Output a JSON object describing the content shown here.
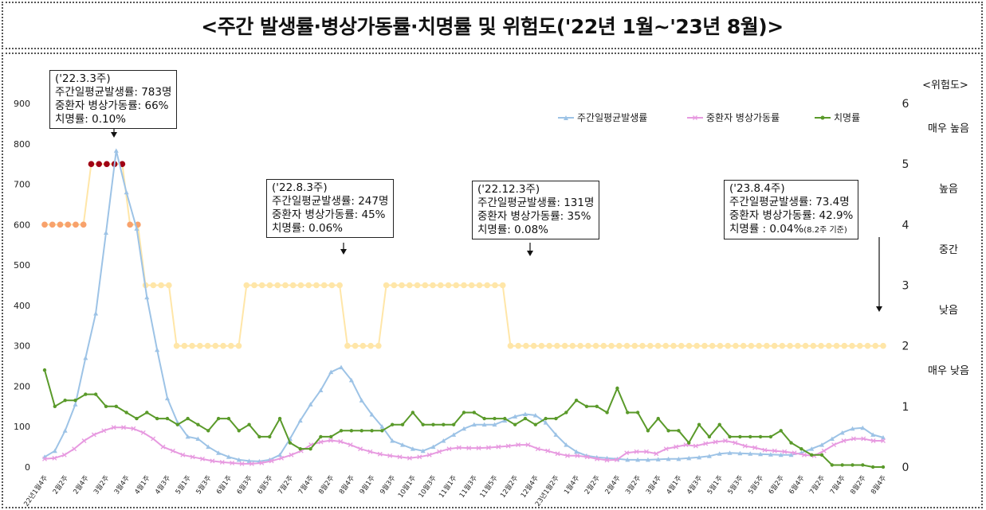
{
  "title": "<주간 발생률·병상가동률·치명률 및 위험도('22년 1월~'23년 8월)>",
  "chart_data": {
    "type": "line",
    "y_left": {
      "ylim": [
        0,
        900
      ],
      "ticks": [
        "0",
        "100",
        "200",
        "300",
        "400",
        "500",
        "600",
        "700",
        "800",
        "900"
      ]
    },
    "y_right": {
      "label": "<위험도>",
      "ylim": [
        0,
        6
      ],
      "ticks": [
        "0",
        "1",
        "2",
        "3",
        "4",
        "5",
        "6"
      ]
    },
    "risk_levels": [
      "매우 높음",
      "높음",
      "중간",
      "낮음",
      "매우 낮음"
    ],
    "legend": [
      "주간일평균발생률",
      "중환자 병상가동률",
      "치명률"
    ],
    "colors": {
      "incidence": "#9dc3e6",
      "bed": "#e79ae0",
      "fatality": "#5a9a2a",
      "risk_mid": "#ffe6a8",
      "risk_high": "#f8a26c",
      "risk_very_high": "#a00014"
    },
    "x_labels": [
      "22년1월4주",
      "2월2주",
      "2월4주",
      "3월2주",
      "3월4주",
      "4월1주",
      "4월3주",
      "5월1주",
      "5월3주",
      "6월1주",
      "6월3주",
      "6월5주",
      "7월2주",
      "7월4주",
      "8월2주",
      "8월4주",
      "9월1주",
      "9월3주",
      "10월1주",
      "10월3주",
      "11월1주",
      "11월3주",
      "11월5주",
      "12월2주",
      "12월4주",
      "23년1월2주",
      "1월4주",
      "2월2주",
      "2월4주",
      "3월2주",
      "3월4주",
      "4월1주",
      "4월3주",
      "5월1주",
      "5월3주",
      "5월5주",
      "6월2주",
      "6월4주",
      "7월2주",
      "7월4주",
      "8월2주",
      "8월4주"
    ],
    "series": [
      {
        "name": "주간일평균발생률",
        "values": [
          25,
          40,
          90,
          155,
          270,
          380,
          580,
          783,
          680,
          590,
          420,
          290,
          170,
          110,
          75,
          70,
          50,
          35,
          25,
          18,
          15,
          14,
          18,
          30,
          70,
          115,
          155,
          190,
          235,
          247,
          215,
          165,
          130,
          100,
          65,
          55,
          45,
          40,
          50,
          65,
          80,
          95,
          105,
          105,
          105,
          115,
          125,
          131,
          128,
          110,
          80,
          55,
          38,
          28,
          24,
          22,
          20,
          18,
          18,
          18,
          19,
          20,
          20,
          22,
          24,
          27,
          33,
          35,
          34,
          33,
          32,
          31,
          30,
          30,
          35,
          45,
          55,
          70,
          85,
          95,
          97,
          80,
          73
        ],
        "markers": [
          0,
          1,
          2,
          3,
          4,
          5,
          6,
          7,
          8,
          9,
          10,
          11,
          12,
          14,
          15,
          16,
          17,
          18,
          19,
          20,
          21,
          22,
          23,
          24,
          25,
          26,
          27,
          28,
          29,
          30,
          31,
          32,
          33,
          34,
          35,
          36,
          37,
          38,
          39,
          40,
          41,
          42,
          43,
          44,
          45,
          46,
          47,
          48,
          49,
          50,
          51,
          52,
          53,
          54,
          55,
          56,
          57,
          58,
          59,
          60,
          61,
          62,
          63,
          64,
          65,
          66,
          67,
          68,
          69,
          70,
          71,
          72,
          73,
          74,
          75,
          76,
          77,
          78,
          79,
          80,
          81,
          82
        ]
      },
      {
        "name": "중환자 병상가동률",
        "values": [
          20,
          22,
          30,
          45,
          65,
          80,
          90,
          98,
          98,
          95,
          85,
          70,
          50,
          40,
          30,
          25,
          20,
          15,
          12,
          10,
          8,
          8,
          10,
          15,
          22,
          30,
          40,
          55,
          62,
          66,
          63,
          55,
          45,
          38,
          32,
          28,
          25,
          22,
          25,
          30,
          38,
          45,
          48,
          47,
          47,
          48,
          50,
          52,
          55,
          55,
          45,
          40,
          33,
          28,
          28,
          25,
          20,
          17,
          18,
          35,
          38,
          38,
          33,
          45,
          50,
          55,
          52,
          58,
          62,
          65,
          60,
          52,
          48,
          42,
          40,
          38,
          35,
          30,
          28,
          40,
          55,
          65,
          70,
          70,
          65,
          65
        ],
        "markers": [
          0,
          1,
          2,
          3,
          4,
          5,
          6,
          7,
          8,
          9,
          10,
          11,
          12,
          13,
          14,
          15,
          16,
          17,
          18,
          19,
          20,
          21,
          22,
          23,
          24,
          25,
          26,
          27,
          28,
          29,
          30,
          31,
          32,
          33,
          34,
          35,
          36,
          37,
          38,
          39,
          40,
          41,
          42,
          43,
          44,
          45,
          46,
          47,
          48,
          49,
          50,
          51,
          52,
          53,
          54,
          55,
          56,
          57,
          58,
          59,
          60,
          61,
          62,
          63,
          64,
          65,
          66,
          67,
          68,
          69,
          70,
          71,
          72,
          73,
          74,
          75,
          76,
          77,
          78,
          79,
          80,
          81,
          82,
          83,
          84,
          85
        ]
      },
      {
        "name": "치명률",
        "values": [
          240,
          150,
          165,
          165,
          180,
          180,
          150,
          150,
          135,
          120,
          135,
          120,
          120,
          105,
          120,
          105,
          90,
          120,
          120,
          90,
          105,
          75,
          75,
          120,
          60,
          45,
          45,
          75,
          75,
          90,
          90,
          90,
          90,
          90,
          105,
          105,
          135,
          105,
          105,
          105,
          105,
          135,
          135,
          120,
          120,
          120,
          105,
          120,
          105,
          120,
          120,
          135,
          165,
          150,
          150,
          135,
          195,
          135,
          135,
          90,
          120,
          90,
          90,
          60,
          105,
          75,
          105,
          75,
          75,
          75,
          75,
          75,
          90,
          60,
          45,
          30,
          30,
          5,
          5,
          5,
          5,
          0,
          0
        ]
      }
    ],
    "risk_values": [
      4,
      4,
      4,
      4,
      4,
      4,
      5,
      5,
      5,
      5,
      5,
      4,
      4,
      3,
      3,
      3,
      3,
      2,
      2,
      2,
      2,
      2,
      2,
      2,
      2,
      2,
      3,
      3,
      3,
      3,
      3,
      3,
      3,
      3,
      3,
      3,
      3,
      3,
      3,
      2,
      2,
      2,
      2,
      2,
      3,
      3,
      3,
      3,
      3,
      3,
      3,
      3,
      3,
      3,
      3,
      3,
      3,
      3,
      3,
      3,
      2,
      2,
      2,
      2,
      2,
      2,
      2,
      2,
      2,
      2,
      2,
      2,
      2,
      2,
      2,
      2,
      2,
      2,
      2,
      2,
      2,
      2,
      2,
      2,
      2,
      2,
      2,
      2,
      2,
      2,
      2,
      2,
      2,
      2,
      2,
      2,
      2,
      2,
      2,
      2,
      2,
      2,
      2,
      2,
      2,
      2,
      2,
      2,
      2
    ],
    "annotations": [
      {
        "lines": [
          "('22.3.3주)",
          "주간일평균발생률: 783명",
          "중환자 병상가동률: 66%",
          "치명률: 0.10%"
        ]
      },
      {
        "lines": [
          "('22.8.3주)",
          "주간일평균발생률: 247명",
          "중환자 병상가동률: 45%",
          "치명률: 0.06%"
        ]
      },
      {
        "lines": [
          "('22.12.3주)",
          "주간일평균발생률: 131명",
          "중환자 병상가동률: 35%",
          "치명률: 0.08%"
        ]
      },
      {
        "lines": [
          "('23.8.4주)",
          "주간일평균발생률: 73.4명",
          "중환자 병상가동률: 42.9%"
        ],
        "last_main": "치명률 : 0.04%",
        "last_small": "(8.2주 기준)"
      }
    ]
  }
}
